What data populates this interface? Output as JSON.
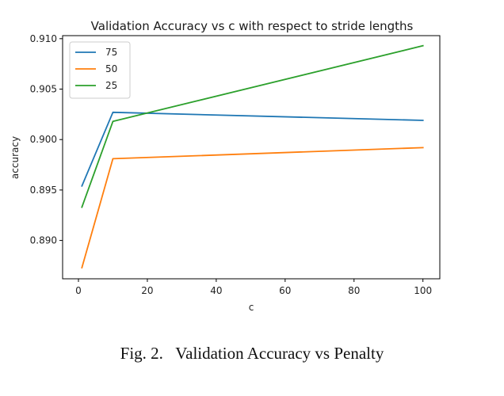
{
  "chart_data": {
    "type": "line",
    "title": "Validation Accuracy vs c with respect to stride lengths",
    "xlabel": "c",
    "ylabel": "accuracy",
    "xlim": [
      -4.6,
      104.9
    ],
    "ylim": [
      0.8862,
      0.9103
    ],
    "xticks": [
      0,
      20,
      40,
      60,
      80,
      100
    ],
    "yticks": [
      0.89,
      0.895,
      0.9,
      0.905,
      0.91
    ],
    "ytick_labels": [
      "0.890",
      "0.895",
      "0.900",
      "0.905",
      "0.910"
    ],
    "x": [
      1,
      10,
      100
    ],
    "series": [
      {
        "name": "75",
        "color": "#1f77b4",
        "values": [
          0.8954,
          0.9027,
          0.9019
        ]
      },
      {
        "name": "50",
        "color": "#ff7f0e",
        "values": [
          0.8873,
          0.8981,
          0.8992
        ]
      },
      {
        "name": "25",
        "color": "#2ca02c",
        "values": [
          0.8933,
          0.9018,
          0.9093
        ]
      }
    ],
    "legend_position": "top-left",
    "grid": false
  },
  "caption": "Fig. 2.   Validation Accuracy vs Penalty"
}
